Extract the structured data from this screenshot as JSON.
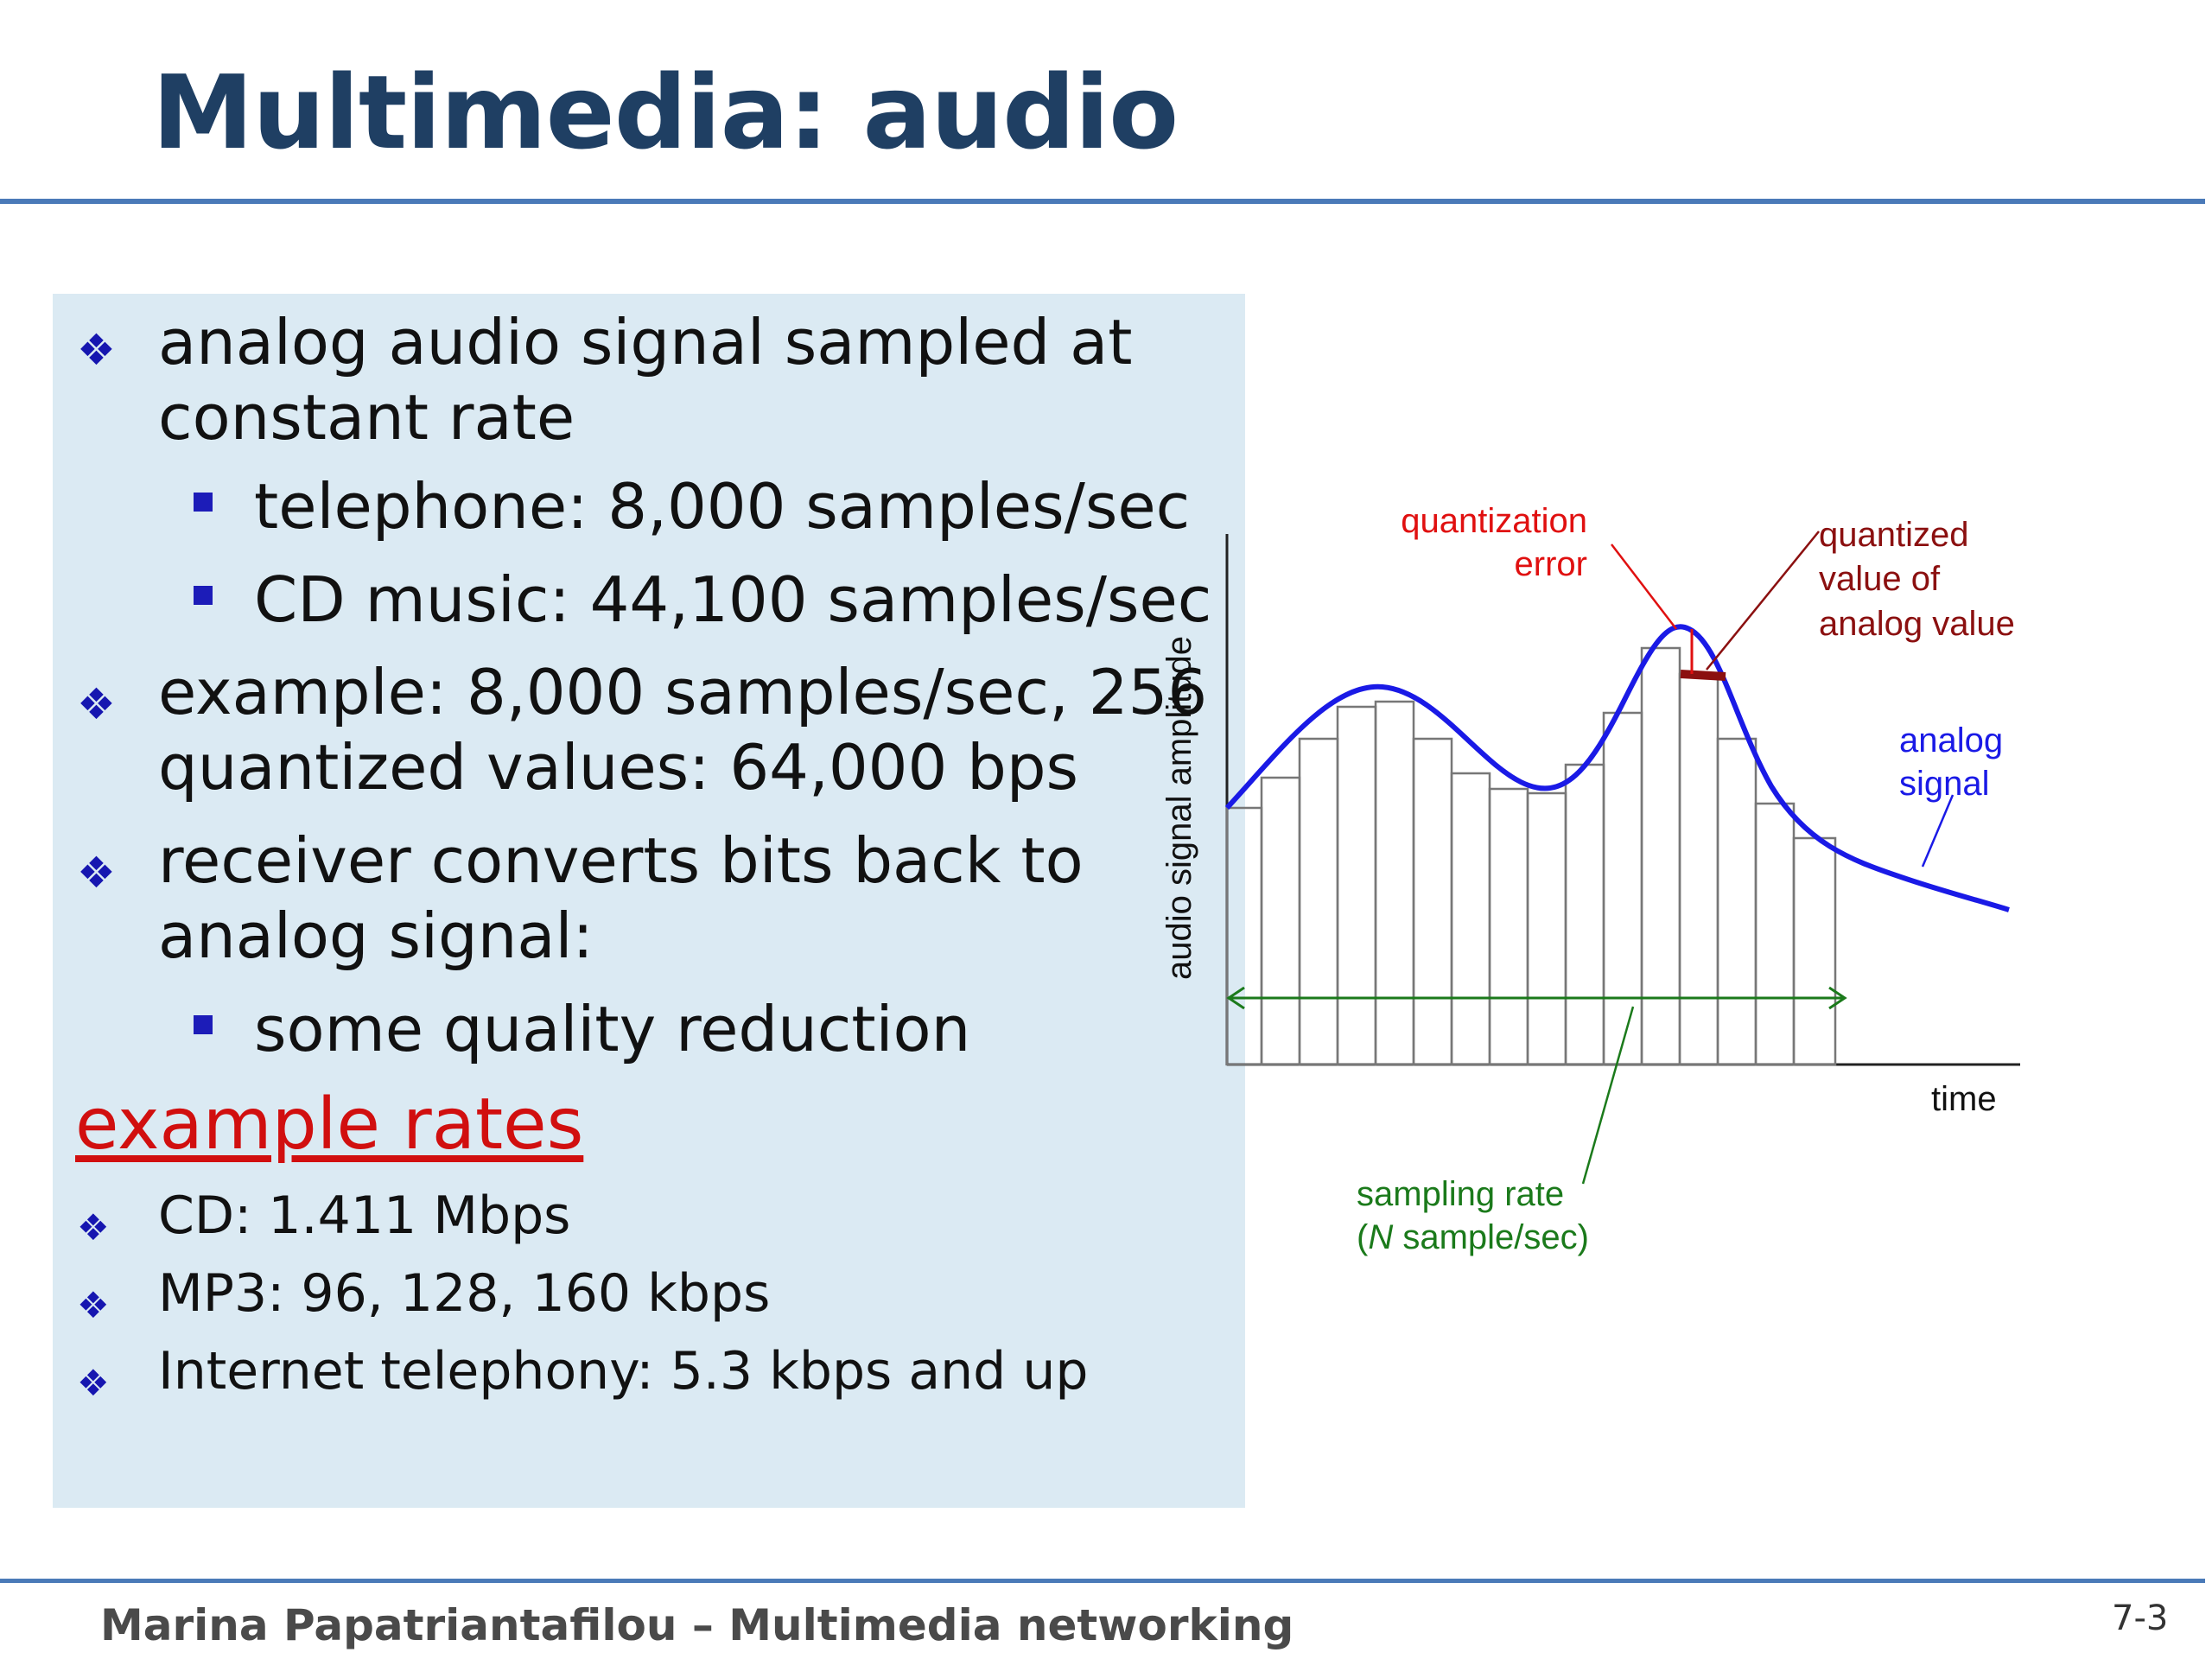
{
  "slide": {
    "title": "Multimedia: audio",
    "bullets": {
      "b1_line1": "analog audio signal sampled at",
      "b1_line2": "constant rate",
      "sub1": "telephone: 8,000 samples/sec",
      "sub2": "CD music: 44,100 samples/sec",
      "b2_line1": "example: 8,000 samples/sec, 256",
      "b2_line2": "quantized values:  64,000 bps",
      "b3_line1": "receiver converts bits back to",
      "b3_line2": "analog signal:",
      "sub3": "some quality reduction"
    },
    "rates": {
      "heading": "example rates",
      "items": [
        "CD: 1.411 Mbps",
        "MP3: 96, 128, 160 kbps",
        "Internet telephony: 5.3 kbps and up"
      ]
    },
    "diagram": {
      "y_axis_label": "audio signal amplitude",
      "x_axis_label": "time",
      "quantization_error_line1": "quantization",
      "quantization_error_line2": "error",
      "quantized_value_line1": "quantized",
      "quantized_value_line2": "value of",
      "quantized_value_line3": "analog value",
      "analog_signal_line1": "analog",
      "analog_signal_line2": "signal",
      "sampling_rate_line1": "sampling rate",
      "sampling_rate_italic": "N",
      "sampling_rate_rest": " sample/sec)",
      "sampling_rate_open": "(",
      "colors": {
        "signal": "#1a1ae6",
        "quantization_error": "#e01010",
        "quantized_value": "#8b1010",
        "sampling_rate": "#1b7a1b"
      }
    },
    "footer": {
      "author": "Marina Papatriantafilou –  Multimedia networking",
      "page": "7-3"
    }
  }
}
